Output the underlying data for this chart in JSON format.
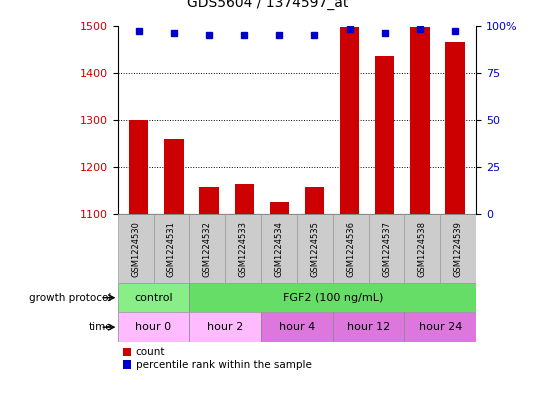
{
  "title": "GDS5604 / 1374597_at",
  "samples": [
    "GSM1224530",
    "GSM1224531",
    "GSM1224532",
    "GSM1224533",
    "GSM1224534",
    "GSM1224535",
    "GSM1224536",
    "GSM1224537",
    "GSM1224538",
    "GSM1224539"
  ],
  "bar_values": [
    1300,
    1260,
    1157,
    1163,
    1125,
    1157,
    1497,
    1435,
    1497,
    1465
  ],
  "percentile_values": [
    97,
    96,
    95,
    95,
    95,
    95,
    98,
    96,
    98,
    97
  ],
  "bar_color": "#cc0000",
  "dot_color": "#0000cc",
  "ylim_left": [
    1100,
    1500
  ],
  "ylim_right": [
    0,
    100
  ],
  "yticks_left": [
    1100,
    1200,
    1300,
    1400,
    1500
  ],
  "yticks_right": [
    0,
    25,
    50,
    75,
    100
  ],
  "growth_protocol_groups": [
    {
      "label": "control",
      "start": 0,
      "end": 2,
      "color": "#88ee88"
    },
    {
      "label": "FGF2 (100 ng/mL)",
      "start": 2,
      "end": 10,
      "color": "#66dd66"
    }
  ],
  "time_groups": [
    {
      "label": "hour 0",
      "start": 0,
      "end": 2,
      "color": "#ffbbff"
    },
    {
      "label": "hour 2",
      "start": 2,
      "end": 4,
      "color": "#ffbbff"
    },
    {
      "label": "hour 4",
      "start": 4,
      "end": 6,
      "color": "#dd77dd"
    },
    {
      "label": "hour 12",
      "start": 6,
      "end": 8,
      "color": "#dd77dd"
    },
    {
      "label": "hour 24",
      "start": 8,
      "end": 10,
      "color": "#dd77dd"
    }
  ],
  "background_color": "#ffffff",
  "growth_protocol_label": "growth protocol",
  "time_label": "time",
  "legend_count_label": "count",
  "legend_percentile_label": "percentile rank within the sample"
}
